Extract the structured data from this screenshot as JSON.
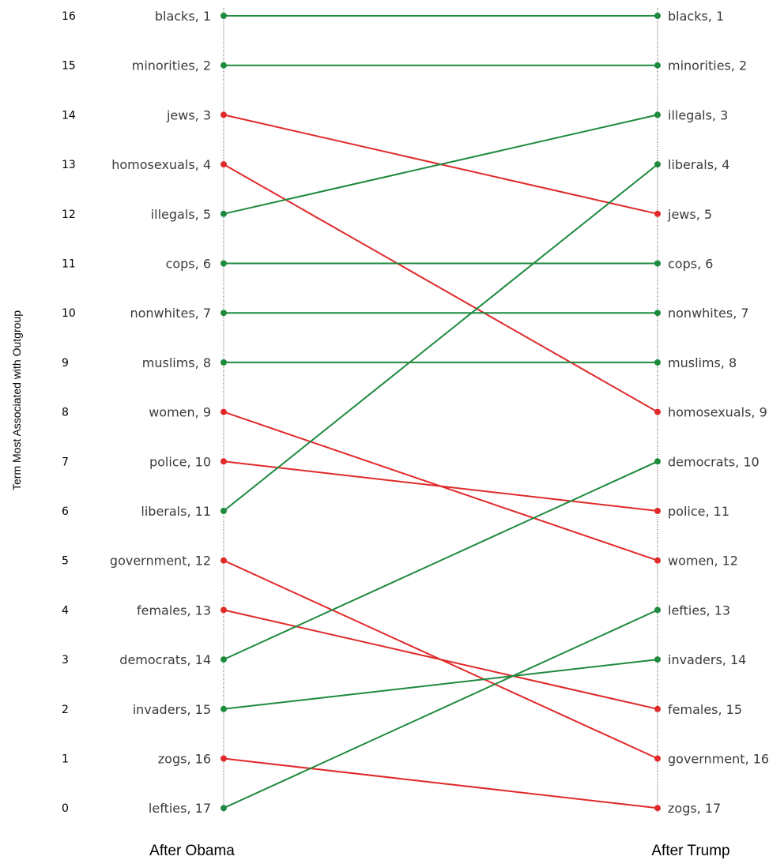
{
  "chart_data": {
    "type": "line",
    "ylabel": "Term Most Associated with Outgroup",
    "y_ticks": [
      "16",
      "15",
      "14",
      "13",
      "12",
      "11",
      "10",
      "9",
      "8",
      "7",
      "6",
      "5",
      "4",
      "3",
      "2",
      "1",
      "0"
    ],
    "ylim": [
      0,
      16
    ],
    "x_categories": [
      "After Obama",
      "After Trump"
    ],
    "grid": false,
    "colors": {
      "same_or_up": "#1e8a3e",
      "down": "#e02a2a"
    },
    "left_labels": [
      "blacks, 1",
      "minorities, 2",
      "jews, 3",
      "homosexuals, 4",
      "illegals, 5",
      "cops, 6",
      "nonwhites, 7",
      "muslims, 8",
      "women, 9",
      "police, 10",
      "liberals, 11",
      "government, 12",
      "females, 13",
      "democrats, 14",
      "invaders, 15",
      "zogs, 16",
      "lefties, 17"
    ],
    "right_labels": [
      "blacks, 1",
      "minorities, 2",
      "illegals, 3",
      "liberals, 4",
      "jews, 5",
      "cops, 6",
      "nonwhites, 7",
      "muslims, 8",
      "homosexuals, 9",
      "democrats, 10",
      "police, 11",
      "women, 12",
      "lefties, 13",
      "invaders, 14",
      "females, 15",
      "government, 16",
      "zogs, 17"
    ],
    "series": [
      {
        "term": "blacks",
        "obama_rank": 1,
        "trump_rank": 1,
        "direction": "same_or_up"
      },
      {
        "term": "minorities",
        "obama_rank": 2,
        "trump_rank": 2,
        "direction": "same_or_up"
      },
      {
        "term": "jews",
        "obama_rank": 3,
        "trump_rank": 5,
        "direction": "down"
      },
      {
        "term": "homosexuals",
        "obama_rank": 4,
        "trump_rank": 9,
        "direction": "down"
      },
      {
        "term": "illegals",
        "obama_rank": 5,
        "trump_rank": 3,
        "direction": "same_or_up"
      },
      {
        "term": "cops",
        "obama_rank": 6,
        "trump_rank": 6,
        "direction": "same_or_up"
      },
      {
        "term": "nonwhites",
        "obama_rank": 7,
        "trump_rank": 7,
        "direction": "same_or_up"
      },
      {
        "term": "muslims",
        "obama_rank": 8,
        "trump_rank": 8,
        "direction": "same_or_up"
      },
      {
        "term": "women",
        "obama_rank": 9,
        "trump_rank": 12,
        "direction": "down"
      },
      {
        "term": "police",
        "obama_rank": 10,
        "trump_rank": 11,
        "direction": "down"
      },
      {
        "term": "liberals",
        "obama_rank": 11,
        "trump_rank": 4,
        "direction": "same_or_up"
      },
      {
        "term": "government",
        "obama_rank": 12,
        "trump_rank": 16,
        "direction": "down"
      },
      {
        "term": "females",
        "obama_rank": 13,
        "trump_rank": 15,
        "direction": "down"
      },
      {
        "term": "democrats",
        "obama_rank": 14,
        "trump_rank": 10,
        "direction": "same_or_up"
      },
      {
        "term": "invaders",
        "obama_rank": 15,
        "trump_rank": 14,
        "direction": "same_or_up"
      },
      {
        "term": "zogs",
        "obama_rank": 16,
        "trump_rank": 17,
        "direction": "down"
      },
      {
        "term": "lefties",
        "obama_rank": 17,
        "trump_rank": 13,
        "direction": "same_or_up"
      }
    ]
  }
}
